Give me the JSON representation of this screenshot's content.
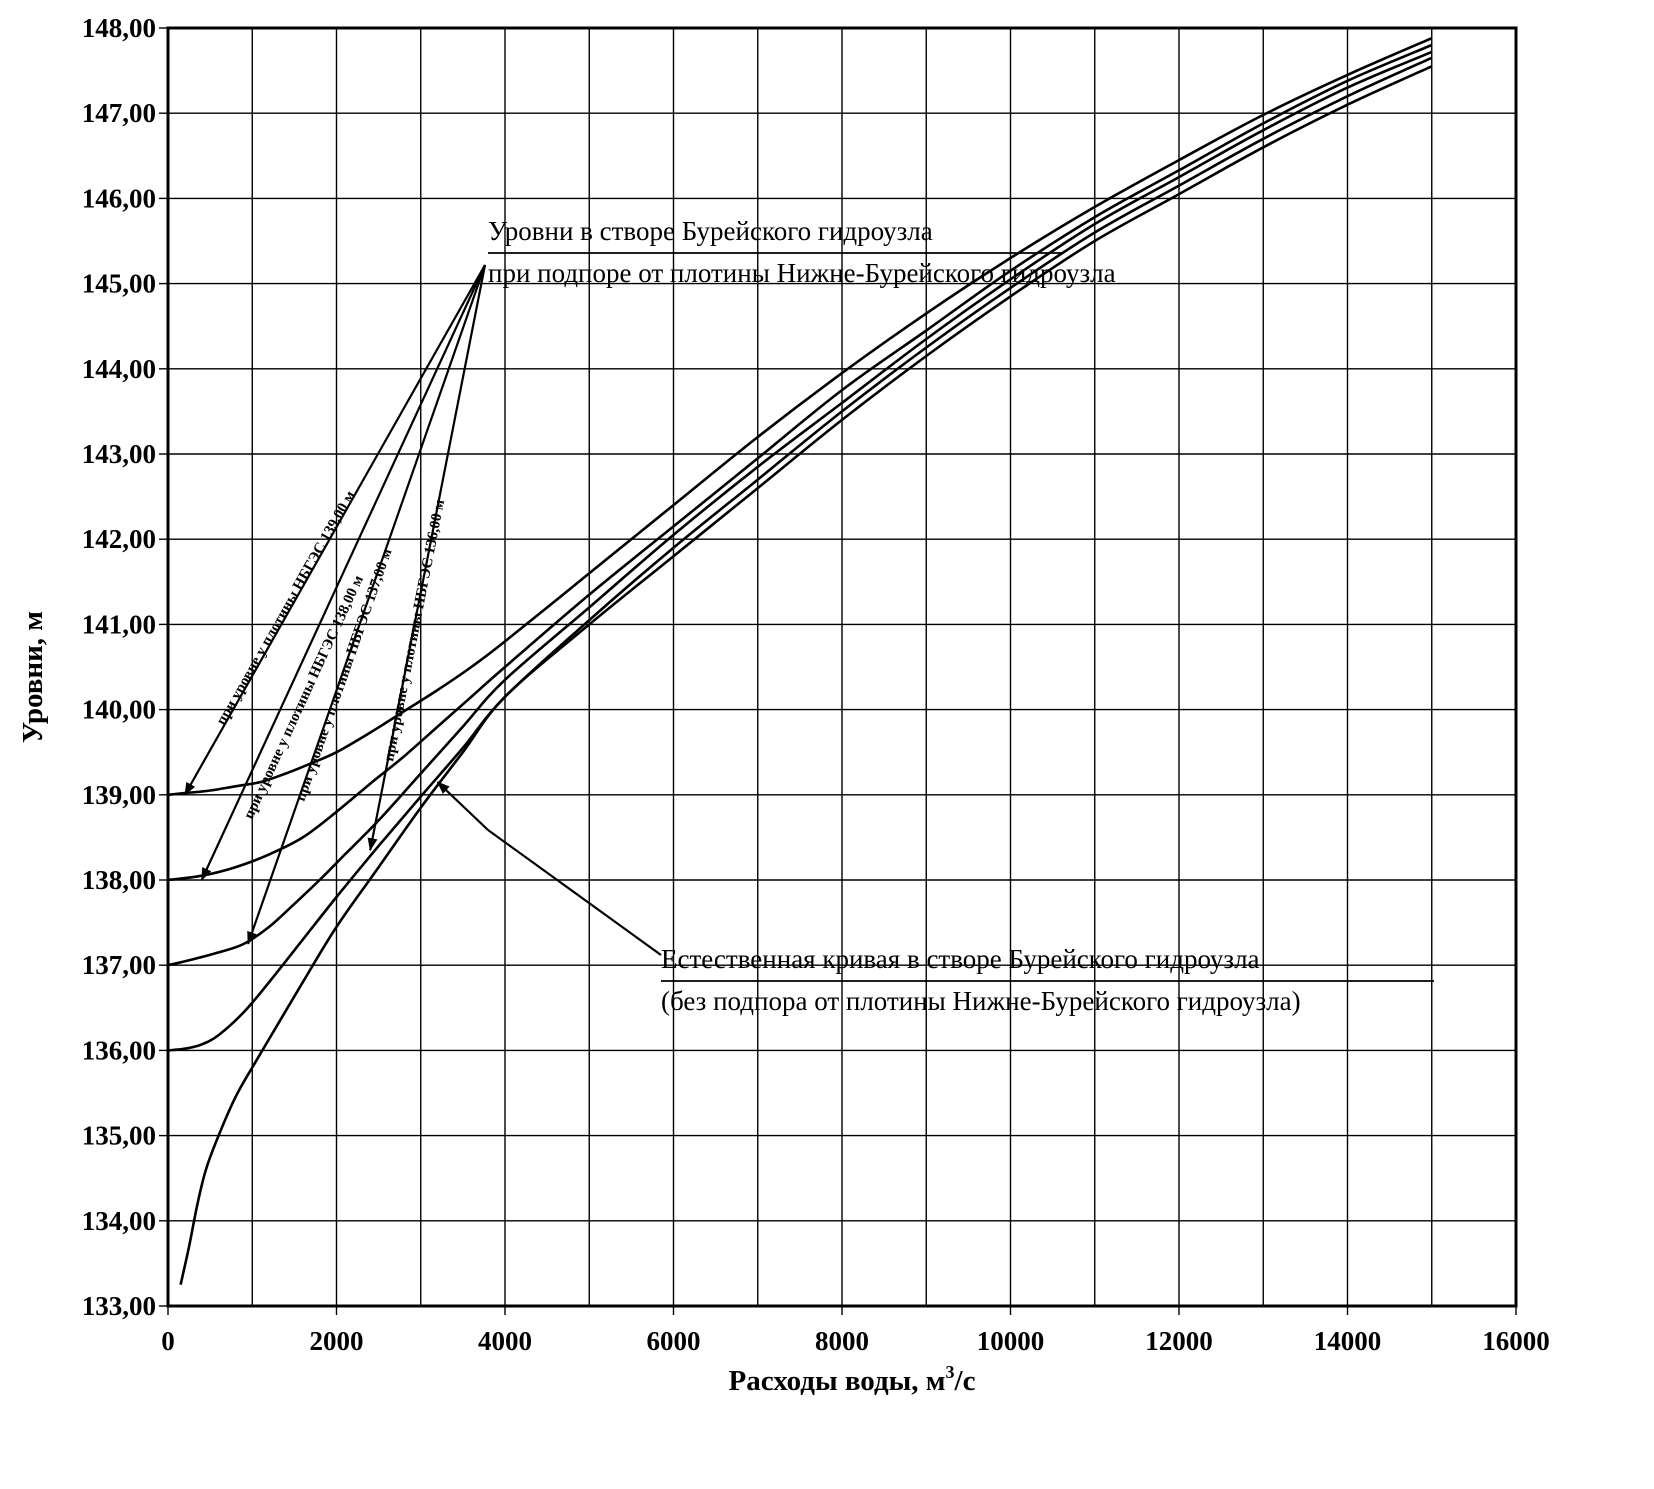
{
  "chart_data": {
    "type": "line",
    "title": "",
    "xlabel": "Расходы воды, м³/с",
    "xlabel_main": "Расходы воды, м",
    "xlabel_sup": "3",
    "xlabel_tail": "/с",
    "ylabel": "Уровни, м",
    "xlim": [
      0,
      16000
    ],
    "ylim": [
      133,
      148
    ],
    "grid": true,
    "x_ticks": [
      0,
      2000,
      4000,
      6000,
      8000,
      10000,
      12000,
      14000,
      16000
    ],
    "x_tick_labels": [
      "0",
      "2000",
      "4000",
      "6000",
      "8000",
      "10000",
      "12000",
      "14000",
      "16000"
    ],
    "y_ticks": [
      133,
      134,
      135,
      136,
      137,
      138,
      139,
      140,
      141,
      142,
      143,
      144,
      145,
      146,
      147,
      148
    ],
    "y_tick_labels": [
      "133,00",
      "134,00",
      "135,00",
      "136,00",
      "137,00",
      "138,00",
      "139,00",
      "140,00",
      "141,00",
      "142,00",
      "143,00",
      "144,00",
      "145,00",
      "146,00",
      "147,00",
      "148,00"
    ],
    "x_minor_gridlines": [
      1000,
      3000,
      5000,
      7000,
      9000,
      11000,
      13000,
      15000
    ],
    "series": [
      {
        "name": "Естественная кривая в створе Бурейского гидроузла (без подпора от плотины Нижне-Бурейского гидроузла)",
        "x": [
          150,
          250,
          350,
          450,
          600,
          800,
          1000,
          1300,
          1600,
          2000,
          2500,
          3000,
          3500,
          4000,
          5000,
          6000,
          7000,
          8000,
          9000,
          10000,
          11000,
          12000,
          13000,
          14000,
          15000
        ],
        "y": [
          133.25,
          133.7,
          134.2,
          134.6,
          135.0,
          135.45,
          135.8,
          136.3,
          136.8,
          137.45,
          138.15,
          138.85,
          139.5,
          140.15,
          141.0,
          141.8,
          142.6,
          143.4,
          144.15,
          144.85,
          145.5,
          146.05,
          146.6,
          147.1,
          147.55
        ]
      },
      {
        "name": "при уровне у плотины НБГЭС 136,00 м",
        "x": [
          0,
          200,
          400,
          600,
          900,
          1200,
          1600,
          2000,
          2500,
          3000,
          3500,
          4000,
          5000,
          6000,
          7000,
          8000,
          9000,
          10000,
          11000,
          12000,
          13000,
          14000,
          15000
        ],
        "y": [
          136.0,
          136.02,
          136.07,
          136.18,
          136.45,
          136.8,
          137.3,
          137.8,
          138.4,
          138.98,
          139.55,
          140.15,
          141.05,
          141.9,
          142.7,
          143.5,
          144.25,
          144.95,
          145.6,
          146.15,
          146.7,
          147.2,
          147.65
        ]
      },
      {
        "name": "при уровне у плотины НБГЭС 137,00 м",
        "x": [
          0,
          300,
          600,
          900,
          1200,
          1500,
          1800,
          2100,
          2500,
          3000,
          3500,
          4000,
          5000,
          6000,
          7000,
          8000,
          9000,
          10000,
          11000,
          12000,
          13000,
          14000,
          15000
        ],
        "y": [
          137.0,
          137.07,
          137.15,
          137.25,
          137.45,
          137.72,
          138.0,
          138.3,
          138.7,
          139.25,
          139.8,
          140.35,
          141.2,
          142.05,
          142.85,
          143.6,
          144.35,
          145.05,
          145.7,
          146.25,
          146.8,
          147.3,
          147.72
        ]
      },
      {
        "name": "при уровне у плотины НБГЭС 138,00 м",
        "x": [
          0,
          400,
          800,
          1200,
          1600,
          2000,
          2400,
          2800,
          3200,
          3600,
          4000,
          5000,
          6000,
          7000,
          8000,
          9000,
          10000,
          11000,
          12000,
          13000,
          14000,
          15000
        ],
        "y": [
          138.0,
          138.05,
          138.15,
          138.3,
          138.5,
          138.8,
          139.13,
          139.45,
          139.8,
          140.15,
          140.5,
          141.35,
          142.15,
          142.95,
          143.75,
          144.45,
          145.15,
          145.78,
          146.33,
          146.88,
          147.38,
          147.8
        ]
      },
      {
        "name": "при уровне у плотины НБГЭС 139,00 м",
        "x": [
          0,
          200,
          500,
          800,
          1100,
          1400,
          1700,
          2000,
          2400,
          2800,
          3200,
          3600,
          4000,
          5000,
          6000,
          7000,
          8000,
          9000,
          10000,
          11000,
          12000,
          13000,
          14000,
          15000
        ],
        "y": [
          139.0,
          139.02,
          139.05,
          139.1,
          139.15,
          139.25,
          139.37,
          139.5,
          139.73,
          139.98,
          140.23,
          140.5,
          140.8,
          141.6,
          142.4,
          143.2,
          143.95,
          144.65,
          145.3,
          145.9,
          146.45,
          146.98,
          147.45,
          147.88
        ]
      }
    ],
    "annotations": {
      "backwater_title_line1": "Уровни в створе Бурейского гидроузла",
      "backwater_title_line2": "при подпоре от плотины Нижне-Бурейского гидроузла",
      "natural_title_line1": "Естественная кривая в створе Бурейского гидроузла",
      "natural_title_line2": "(без подпора от плотины Нижне-Бурейского гидроузла)",
      "curve_labels": [
        "при уровне у плотины НБГЭС 139,00 м",
        "при уровне у плотины НБГЭС 138,00 м",
        "при уровне у плотины НБГЭС 137,00 м",
        "при уровне у плотины НБГЭС 136,00 м"
      ]
    }
  }
}
